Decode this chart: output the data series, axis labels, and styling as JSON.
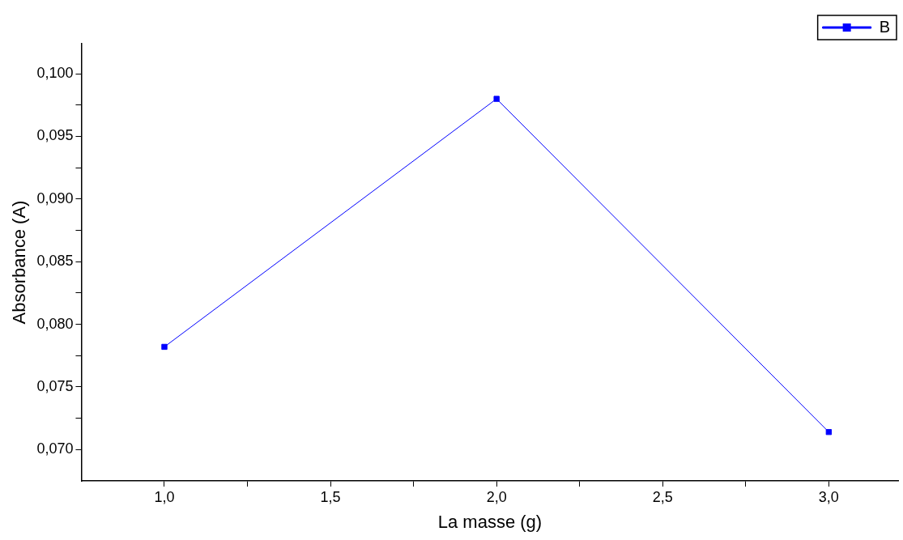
{
  "chart_data": {
    "type": "line",
    "xlabel": "La masse (g)",
    "ylabel": "Absorbance (A)",
    "x": [
      1.0,
      2.0,
      3.0
    ],
    "series": [
      {
        "name": "B",
        "color": "#0000ff",
        "values": [
          0.0782,
          0.098,
          0.0714
        ]
      }
    ],
    "xlim": [
      0.75,
      3.21
    ],
    "ylim": [
      0.0675,
      0.1024
    ],
    "xticks": [
      {
        "value": 1.0,
        "label": "1,0"
      },
      {
        "value": 1.25,
        "label": null
      },
      {
        "value": 1.5,
        "label": "1,5"
      },
      {
        "value": 1.75,
        "label": null
      },
      {
        "value": 2.0,
        "label": "2,0"
      },
      {
        "value": 2.25,
        "label": null
      },
      {
        "value": 2.5,
        "label": "2,5"
      },
      {
        "value": 2.75,
        "label": null
      },
      {
        "value": 3.0,
        "label": "3,0"
      }
    ],
    "yticks": [
      {
        "value": 0.07,
        "label": "0,070"
      },
      {
        "value": 0.0725,
        "label": null
      },
      {
        "value": 0.075,
        "label": "0,075"
      },
      {
        "value": 0.0775,
        "label": null
      },
      {
        "value": 0.08,
        "label": "0,080"
      },
      {
        "value": 0.0825,
        "label": null
      },
      {
        "value": 0.085,
        "label": "0,085"
      },
      {
        "value": 0.0875,
        "label": null
      },
      {
        "value": 0.09,
        "label": "0,090"
      },
      {
        "value": 0.0925,
        "label": null
      },
      {
        "value": 0.095,
        "label": "0,095"
      },
      {
        "value": 0.0975,
        "label": null
      },
      {
        "value": 0.1,
        "label": "0,100"
      }
    ],
    "grid": false,
    "legend": "top right",
    "marker": "square",
    "line_style": "solid"
  }
}
